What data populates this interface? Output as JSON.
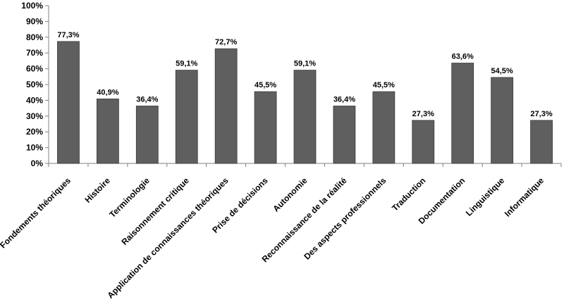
{
  "chart_data": {
    "type": "bar",
    "categories": [
      "Fondements théoriques",
      "Histoire",
      "Terminologie",
      "Raisonnement critique",
      "Application de connaissances théoriques",
      "Prise de décisions",
      "Autonomie",
      "Reconnaissance de la réalité",
      "Des aspects professionnels",
      "Traduction",
      "Documentation",
      "Linguistique",
      "Informatique"
    ],
    "values": [
      77.3,
      40.9,
      36.4,
      59.1,
      72.7,
      45.5,
      59.1,
      36.4,
      45.5,
      27.3,
      63.6,
      54.5,
      27.3
    ],
    "value_labels": [
      "77,3%",
      "40,9%",
      "36,4%",
      "59,1%",
      "72,7%",
      "45,5%",
      "59,1%",
      "36,4%",
      "45,5%",
      "27,3%",
      "63,6%",
      "54,5%",
      "27,3%"
    ],
    "yticks": [
      0,
      10,
      20,
      30,
      40,
      50,
      60,
      70,
      80,
      90,
      100
    ],
    "ytick_labels": [
      "0%",
      "10%",
      "20%",
      "30%",
      "40%",
      "50%",
      "60%",
      "70%",
      "80%",
      "90%",
      "100%"
    ],
    "ylim": [
      0,
      100
    ],
    "grid": false,
    "legend": "none",
    "colors": {
      "bar": "#5f5f5f",
      "bar_edge": "#3a3a3a",
      "axis": "#808080"
    }
  }
}
